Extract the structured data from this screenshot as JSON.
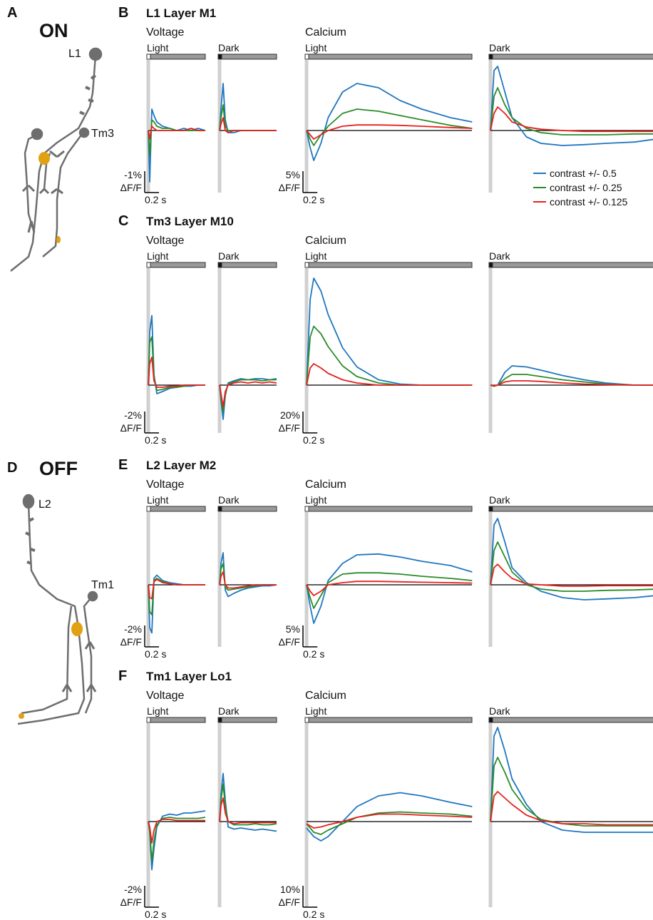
{
  "series": [
    {
      "name": "contrast +/- 0.5",
      "color": "#1f77c0"
    },
    {
      "name": "contrast +/- 0.25",
      "color": "#2a8c2a"
    },
    {
      "name": "contrast +/- 0.125",
      "color": "#e8201e"
    }
  ],
  "neurons": [
    {
      "letter": "A",
      "polarity": "ON",
      "cells": [
        "L1",
        "Tm3"
      ]
    },
    {
      "letter": "D",
      "polarity": "OFF",
      "cells": [
        "L2",
        "Tm1"
      ]
    }
  ],
  "voltage_x": [
    0,
    0.02,
    0.05,
    0.08,
    0.12,
    0.2,
    0.3,
    0.4,
    0.5,
    0.6,
    0.7,
    0.8
  ],
  "calcium_x": [
    0,
    0.05,
    0.1,
    0.2,
    0.3,
    0.5,
    0.7,
    1.0,
    1.3,
    1.6,
    2.0,
    2.3
  ],
  "rows": [
    {
      "letter": "B",
      "title": "L1 Layer M1",
      "voltage": {
        "label": "Voltage",
        "scale_y": {
          "value": -1,
          "label": "-1%"
        },
        "unit": "ΔF/F",
        "scale_x": {
          "value": 0.2,
          "label": "0.2 s"
        },
        "plots": [
          {
            "label": "Light",
            "values": [
              [
                0,
                2.4,
                -1.0,
                -0.7,
                -0.4,
                -0.2,
                -0.1,
                0,
                -0.1,
                0,
                -0.1,
                0
              ],
              [
                0,
                1.2,
                -0.5,
                -0.4,
                -0.2,
                -0.1,
                -0.1,
                0,
                0,
                0,
                0,
                0
              ],
              [
                0,
                0.4,
                -0.2,
                -0.1,
                0,
                0,
                0,
                0,
                0,
                -0.1,
                0,
                0
              ]
            ]
          },
          {
            "label": "Dark",
            "values": [
              [
                0,
                -1.0,
                -2.2,
                -0.5,
                0.1,
                0.1,
                0,
                0,
                0,
                0,
                0,
                0
              ],
              [
                0,
                -0.6,
                -1.2,
                -0.2,
                0,
                0,
                0,
                0,
                0,
                0,
                0,
                0
              ],
              [
                0,
                -0.3,
                -0.6,
                0,
                0.1,
                0,
                0,
                0,
                0,
                0,
                0,
                0
              ]
            ]
          }
        ]
      },
      "calcium": {
        "label": "Calcium",
        "scale_y": {
          "value": 5,
          "label": "5%"
        },
        "unit": "ΔF/F",
        "scale_x": {
          "value": 0.2,
          "label": "0.2 s"
        },
        "plots": [
          {
            "label": "Light",
            "values": [
              [
                0,
                -4,
                -7,
                -3,
                3,
                9,
                11,
                10,
                7,
                5,
                3,
                2
              ],
              [
                0,
                -2,
                -3.5,
                -1,
                1,
                4,
                5,
                4.5,
                3.5,
                2.5,
                1.2,
                0.5
              ],
              [
                0,
                -1,
                -2,
                -1,
                0,
                1,
                1.3,
                1.3,
                1.2,
                1,
                0.7,
                0.5
              ]
            ]
          },
          {
            "label": "Dark",
            "values": [
              [
                0,
                14,
                15,
                9,
                3,
                -1.5,
                -3,
                -3.5,
                -3.3,
                -3,
                -2.7,
                -2
              ],
              [
                0,
                8,
                10,
                6,
                3,
                0.5,
                -0.5,
                -1,
                -1,
                -1,
                -0.8,
                -0.8
              ],
              [
                0,
                4,
                5.5,
                4,
                2,
                0.8,
                0.3,
                0,
                -0.2,
                -0.2,
                -0.2,
                -0.2
              ]
            ]
          }
        ]
      }
    },
    {
      "letter": "C",
      "title": "Tm3 Layer M10",
      "voltage": {
        "label": "Voltage",
        "scale_y": {
          "value": -2,
          "label": "-2%"
        },
        "unit": "ΔF/F",
        "scale_x": {
          "value": 0.2,
          "label": "0.2 s"
        },
        "plots": [
          {
            "label": "Light",
            "values": [
              [
                0,
                -5,
                -6.5,
                -1,
                0.8,
                0.6,
                0.3,
                0.2,
                0.1,
                0.1,
                0,
                0
              ],
              [
                0,
                -4,
                -4.5,
                -0.8,
                0.5,
                0.4,
                0.2,
                0.2,
                0.1,
                0,
                0,
                0
              ],
              [
                0,
                -2,
                -2.6,
                -0.4,
                0.2,
                0.2,
                0.1,
                0.1,
                0,
                0,
                0,
                0
              ]
            ]
          },
          {
            "label": "Dark",
            "values": [
              [
                0,
                1.5,
                3.2,
                1,
                -0.2,
                -0.4,
                -0.6,
                -0.5,
                -0.6,
                -0.6,
                -0.5,
                -0.6
              ],
              [
                0,
                1.2,
                2.5,
                0.8,
                -0.1,
                -0.3,
                -0.5,
                -0.5,
                -0.5,
                -0.4,
                -0.5,
                -0.5
              ],
              [
                0,
                0.8,
                2,
                0.6,
                0,
                -0.2,
                -0.3,
                -0.2,
                -0.3,
                -0.2,
                -0.3,
                -0.2
              ]
            ]
          }
        ]
      },
      "calcium": {
        "label": "Calcium",
        "scale_y": {
          "value": 20,
          "label": "20%"
        },
        "unit": "ΔF/F",
        "scale_x": {
          "value": 0.2,
          "label": "0.2 s"
        },
        "plots": [
          {
            "label": "Light",
            "values": [
              [
                0,
                80,
                100,
                88,
                66,
                35,
                17,
                5,
                1,
                0,
                0,
                0
              ],
              [
                0,
                45,
                55,
                48,
                36,
                18,
                8,
                2,
                0,
                0,
                0,
                0
              ],
              [
                0,
                16,
                20,
                16,
                11,
                5,
                2,
                0,
                0,
                0,
                0,
                0
              ]
            ]
          },
          {
            "label": "Dark",
            "values": [
              [
                0,
                -1,
                0,
                12,
                18,
                17,
                14,
                9,
                5,
                2,
                0,
                0
              ],
              [
                0,
                -1,
                0,
                6,
                10,
                10,
                8,
                5,
                3,
                1,
                0,
                0
              ],
              [
                0,
                -0.5,
                0,
                3,
                4,
                4,
                3.5,
                2,
                1,
                0.5,
                0,
                0
              ]
            ]
          }
        ]
      }
    },
    {
      "letter": "E",
      "title": "L2 Layer M2",
      "voltage": {
        "label": "Voltage",
        "scale_y": {
          "value": -2,
          "label": "-2%"
        },
        "unit": "ΔF/F",
        "scale_x": {
          "value": 0.2,
          "label": "0.2 s"
        },
        "plots": [
          {
            "label": "Light",
            "values": [
              [
                0,
                4,
                4.5,
                -0.6,
                -0.9,
                -0.4,
                -0.2,
                -0.1,
                0,
                0,
                0,
                0
              ],
              [
                0,
                2.5,
                2.8,
                -0.4,
                -0.6,
                -0.3,
                -0.1,
                0,
                0,
                0,
                0,
                0
              ],
              [
                0,
                1.2,
                1.3,
                -0.3,
                -0.5,
                -0.2,
                -0.1,
                0,
                0,
                0,
                0,
                0
              ]
            ]
          },
          {
            "label": "Dark",
            "values": [
              [
                0,
                -2,
                -3,
                0.5,
                1.1,
                0.8,
                0.5,
                0.3,
                0.2,
                0.1,
                0.1,
                0
              ],
              [
                0,
                -1.5,
                -2,
                0.2,
                0.5,
                0.4,
                0.3,
                0.2,
                0.1,
                0,
                0,
                0
              ],
              [
                0,
                -0.8,
                -1.2,
                0,
                0.3,
                0.3,
                0.2,
                0.1,
                0,
                0,
                0,
                0
              ]
            ]
          }
        ]
      },
      "calcium": {
        "label": "Calcium",
        "scale_y": {
          "value": 5,
          "label": "5%"
        },
        "unit": "ΔF/F",
        "scale_x": {
          "value": 0.2,
          "label": "0.2 s"
        },
        "plots": [
          {
            "label": "Light",
            "values": [
              [
                0,
                -5,
                -9,
                -5,
                1,
                5,
                7,
                7.2,
                6.5,
                5.5,
                4.5,
                3
              ],
              [
                0,
                -3,
                -5.5,
                -2.5,
                0.5,
                2.5,
                2.8,
                2.8,
                2.5,
                2,
                1.5,
                1
              ],
              [
                0,
                -1.5,
                -2.5,
                -1.5,
                0,
                0.5,
                0.8,
                0.8,
                0.7,
                0.6,
                0.5,
                0.4
              ]
            ]
          },
          {
            "label": "Dark",
            "values": [
              [
                0,
                14,
                15.5,
                10,
                4,
                0.5,
                -1.5,
                -3,
                -3.5,
                -3.3,
                -3,
                -2.5
              ],
              [
                0,
                8,
                10,
                6.5,
                3,
                0,
                -1,
                -1.5,
                -1.5,
                -1.3,
                -1.2,
                -1
              ],
              [
                0,
                4,
                4.8,
                3,
                1.5,
                0.2,
                0,
                -0.3,
                -0.3,
                -0.2,
                -0.2,
                -0.2
              ]
            ]
          }
        ]
      }
    },
    {
      "letter": "F",
      "title": "Tm1 Layer Lo1",
      "voltage": {
        "label": "Voltage",
        "scale_y": {
          "value": -2,
          "label": "-2%"
        },
        "unit": "ΔF/F",
        "scale_x": {
          "value": 0.2,
          "label": "0.2 s"
        },
        "plots": [
          {
            "label": "Light",
            "values": [
              [
                0,
                1,
                4.5,
                2.5,
                0.5,
                -0.5,
                -0.7,
                -0.6,
                -0.8,
                -0.8,
                -0.9,
                -1
              ],
              [
                0,
                0.8,
                3.7,
                1.8,
                0.3,
                -0.3,
                -0.4,
                -0.3,
                -0.3,
                -0.3,
                -0.3,
                -0.4
              ],
              [
                0,
                0.5,
                2,
                0.8,
                0,
                -0.2,
                -0.2,
                -0.1,
                -0.1,
                -0.1,
                -0.1,
                -0.1
              ]
            ]
          },
          {
            "label": "Dark",
            "values": [
              [
                0,
                -2.5,
                -4.5,
                -2,
                0.5,
                0.7,
                0.6,
                0.7,
                0.8,
                0.7,
                0.8,
                0.9
              ],
              [
                0,
                -2,
                -3.5,
                -1.5,
                0,
                0.3,
                0.3,
                0.3,
                0.2,
                0.3,
                0.3,
                0.2
              ],
              [
                0,
                -1.5,
                -2.2,
                -0.8,
                0,
                0.2,
                0.1,
                0.1,
                0.1,
                0.1,
                0.1,
                0.1
              ]
            ]
          }
        ]
      },
      "calcium": {
        "label": "Calcium",
        "scale_y": {
          "value": 10,
          "label": "10%"
        },
        "unit": "ΔF/F",
        "scale_x": {
          "value": 0.2,
          "label": "0.2 s"
        },
        "plots": [
          {
            "label": "Light",
            "values": [
              [
                -3,
                -5,
                -7,
                -9,
                -7,
                0,
                7,
                12,
                13.5,
                12,
                9,
                7
              ],
              [
                -1,
                -3,
                -5,
                -6,
                -4,
                -1,
                2,
                4,
                4.5,
                4,
                3.5,
                2.5
              ],
              [
                -1,
                -2,
                -3,
                -2.5,
                -1.5,
                0,
                2,
                3.5,
                3.5,
                3,
                2.5,
                2
              ]
            ]
          },
          {
            "label": "Dark",
            "values": [
              [
                0,
                40,
                44,
                33,
                20,
                8,
                0,
                -4,
                -5,
                -5,
                -5,
                -5
              ],
              [
                0,
                26,
                30,
                23,
                15,
                6,
                1,
                -1,
                -2,
                -2,
                -2,
                -2
              ],
              [
                0,
                12,
                14,
                11,
                8,
                3,
                0.5,
                -1,
                -1,
                -1.5,
                -1.5,
                -1.5
              ]
            ]
          }
        ]
      }
    }
  ]
}
